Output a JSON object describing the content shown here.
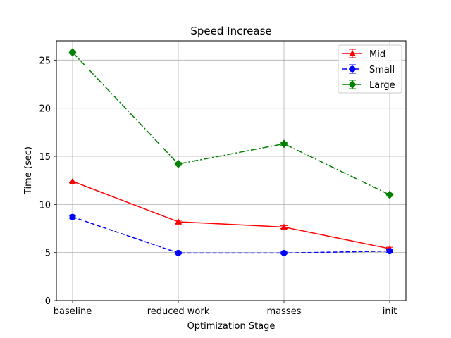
{
  "chart_data": {
    "type": "line",
    "title": "Speed Increase",
    "xlabel": "Optimization Stage",
    "ylabel": "Time (sec)",
    "categories": [
      "baseline",
      "reduced work",
      "masses",
      "init"
    ],
    "ylim": [
      0,
      27
    ],
    "yticks": [
      0,
      5,
      10,
      15,
      20,
      25
    ],
    "grid": true,
    "legend_position": "top-right",
    "series": [
      {
        "name": "Mid",
        "values": [
          12.4,
          8.2,
          7.65,
          5.4
        ],
        "error": [
          0.15,
          0.15,
          0.15,
          0.15
        ],
        "color": "#ff0000",
        "marker": "triangle",
        "linestyle": "solid"
      },
      {
        "name": "Small",
        "values": [
          8.7,
          4.95,
          4.95,
          5.15
        ],
        "error": [
          0.15,
          0.1,
          0.1,
          0.15
        ],
        "color": "#0000ff",
        "marker": "circle",
        "linestyle": "dashed"
      },
      {
        "name": "Large",
        "values": [
          25.8,
          14.2,
          16.3,
          11.0
        ],
        "error": [
          0.15,
          0.15,
          0.15,
          0.15
        ],
        "color": "#008000",
        "marker": "diamond",
        "linestyle": "dashdot"
      }
    ]
  }
}
